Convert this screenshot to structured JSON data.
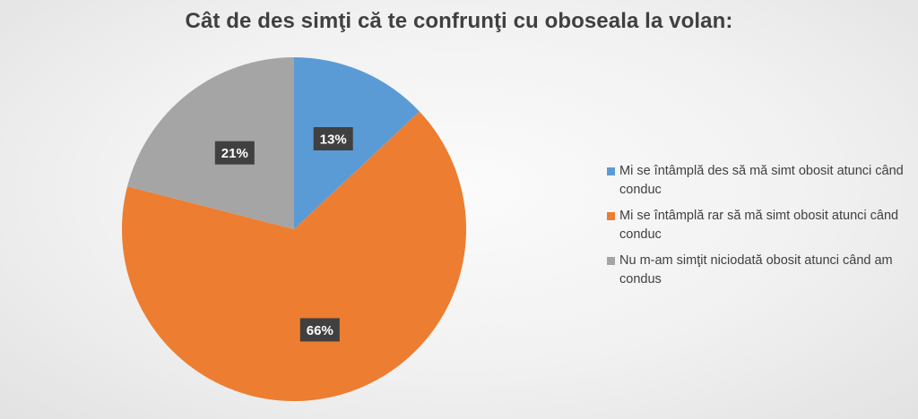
{
  "chart_data": {
    "type": "pie",
    "title": "Cât de des simţi că te confrunţi cu oboseala la volan:",
    "series": [
      {
        "values": [
          13,
          66,
          21
        ],
        "data_labels": [
          "13%",
          "66%",
          "21%"
        ]
      }
    ],
    "categories": [
      "Mi se întâmplă des să mă simt obosit atunci când conduc",
      "Mi se întâmplă rar să mă simt obosit atunci când conduc",
      "Nu m-am simţit niciodată obosit atunci când am condus"
    ],
    "colors": [
      "#5b9bd5",
      "#ed7d31",
      "#a5a5a5"
    ],
    "legend_position": "right"
  }
}
